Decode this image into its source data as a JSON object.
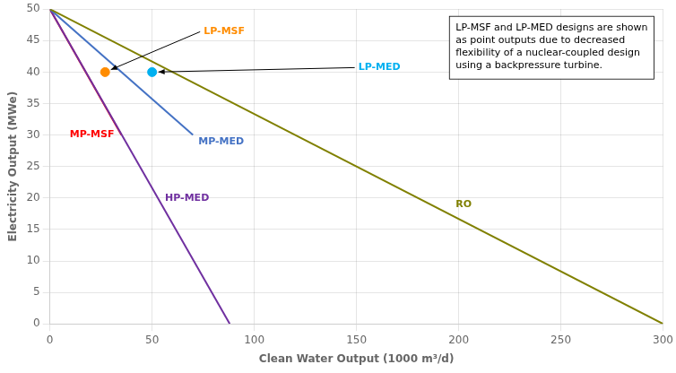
{
  "chart_data": {
    "type": "line",
    "xlabel": "Clean Water Output (1000 m³/d)",
    "ylabel": "Electricity Output (MWe)",
    "xlim": [
      0,
      300
    ],
    "ylim": [
      0,
      50
    ],
    "xticks": [
      0,
      50,
      100,
      150,
      200,
      250,
      300
    ],
    "yticks": [
      0,
      5,
      10,
      15,
      20,
      25,
      30,
      35,
      40,
      45,
      50
    ],
    "grid": true,
    "series": [
      {
        "name": "RO",
        "color": "#808000",
        "x": [
          0,
          300
        ],
        "values": [
          50,
          0
        ]
      },
      {
        "name": "MP-MED",
        "color": "#4472C4",
        "x": [
          0,
          70
        ],
        "values": [
          50,
          30
        ]
      },
      {
        "name": "HP-MED",
        "color": "#7030A0",
        "x": [
          0,
          88
        ],
        "values": [
          50,
          0
        ]
      },
      {
        "name": "MP-MSF",
        "color": "#FF0000",
        "x": [
          0,
          35
        ],
        "values": [
          50,
          30
        ]
      },
      {
        "name": "LP-MSF",
        "type": "scatter",
        "marker": "circle",
        "color": "#FF8C00",
        "x": [
          27
        ],
        "values": [
          40
        ]
      },
      {
        "name": "LP-MED",
        "type": "scatter",
        "marker": "circle",
        "color": "#00B0F0",
        "x": [
          50
        ],
        "values": [
          40
        ]
      }
    ],
    "annotations": [
      "LP-MSF and LP-MED designs are shown\nas point outputs due to decreased\nflexibility of a nuclear-coupled design\nusing a backpressure turbine."
    ]
  }
}
